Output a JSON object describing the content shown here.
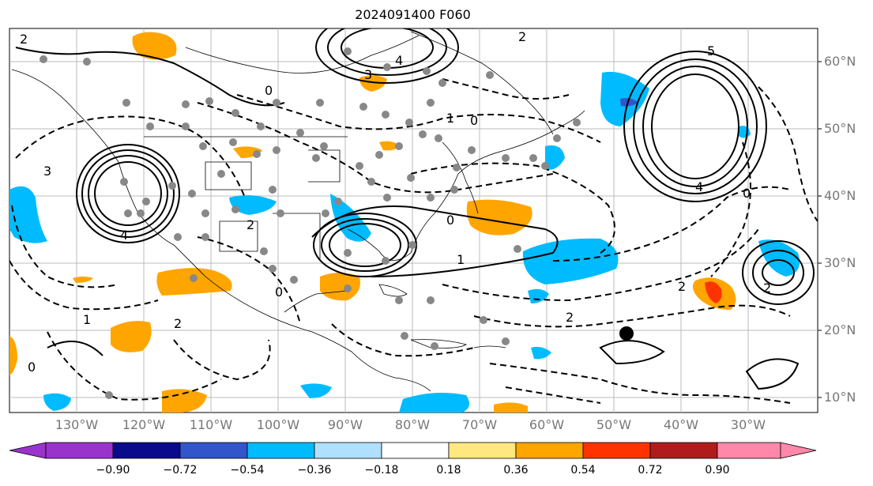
{
  "title": "2024091400 F060",
  "lat_labels": [
    "60°N",
    "50°N",
    "40°N",
    "30°N",
    "20°N",
    "10°N"
  ],
  "lon_labels": [
    "130°W",
    "120°W",
    "110°W",
    "100°W",
    "90°W",
    "80°W",
    "70°W",
    "60°W",
    "50°W",
    "40°W",
    "30°W"
  ],
  "colorbar": {
    "ticks": [
      "−0.90",
      "−0.72",
      "−0.54",
      "−0.36",
      "−0.18",
      "0.18",
      "0.36",
      "0.54",
      "0.72",
      "0.90"
    ],
    "colors": [
      "#9933cc",
      "#0a0a8c",
      "#3355cc",
      "#00bbff",
      "#b0e0ff",
      "#ffffff",
      "#ffe880",
      "#ffa500",
      "#ff3300",
      "#b01c1c",
      "#ff88aa"
    ]
  },
  "contour_labels": [
    {
      "text": "0"
    },
    {
      "text": "1"
    },
    {
      "text": "2"
    },
    {
      "text": "3"
    },
    {
      "text": "4"
    },
    {
      "text": "5"
    }
  ],
  "marker": {
    "shape": "filled-circle",
    "color": "#000000"
  }
}
